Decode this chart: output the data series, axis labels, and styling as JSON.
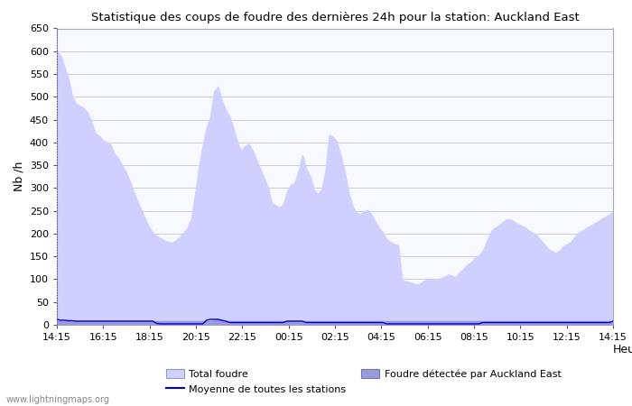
{
  "title": "Statistique des coups de foudre des dernières 24h pour la station: Auckland East",
  "ylabel": "Nb /h",
  "xlabel": "Heure",
  "watermark": "www.lightningmaps.org",
  "xlim_labels": [
    "14:15",
    "16:15",
    "18:15",
    "20:15",
    "22:15",
    "00:15",
    "02:15",
    "04:15",
    "06:15",
    "08:15",
    "10:15",
    "12:15",
    "14:15"
  ],
  "ylim": [
    0,
    650
  ],
  "yticks": [
    0,
    50,
    100,
    150,
    200,
    250,
    300,
    350,
    400,
    450,
    500,
    550,
    600,
    650
  ],
  "total_foudre_color": "#d0d0ff",
  "detected_foudre_color": "#9999dd",
  "moyenne_color": "#0000cc",
  "background_color": "#ffffff",
  "plot_bg_color": "#f8f8ff",
  "grid_color": "#ccccdd",
  "total_y": [
    600,
    590,
    565,
    540,
    500,
    485,
    480,
    475,
    465,
    445,
    420,
    415,
    405,
    400,
    395,
    375,
    365,
    350,
    335,
    315,
    292,
    272,
    252,
    232,
    215,
    202,
    195,
    190,
    185,
    182,
    180,
    185,
    192,
    202,
    212,
    232,
    285,
    345,
    392,
    432,
    456,
    512,
    522,
    492,
    472,
    457,
    432,
    402,
    382,
    392,
    397,
    382,
    362,
    342,
    322,
    302,
    267,
    262,
    257,
    264,
    292,
    307,
    312,
    337,
    372,
    342,
    327,
    297,
    287,
    297,
    337,
    417,
    412,
    402,
    372,
    337,
    292,
    262,
    247,
    242,
    248,
    252,
    242,
    227,
    212,
    202,
    187,
    182,
    177,
    174,
    98,
    95,
    93,
    90,
    88,
    92,
    98,
    100,
    98,
    100,
    102,
    105,
    110,
    108,
    105,
    115,
    122,
    132,
    137,
    147,
    152,
    162,
    182,
    202,
    212,
    217,
    224,
    230,
    232,
    227,
    222,
    218,
    214,
    207,
    202,
    197,
    187,
    177,
    167,
    162,
    157,
    162,
    172,
    177,
    182,
    192,
    202,
    207,
    212,
    217,
    222,
    227,
    232,
    237,
    242,
    247
  ],
  "detected_y": [
    8,
    8,
    8,
    8,
    8,
    8,
    8,
    8,
    8,
    8,
    8,
    8,
    8,
    8,
    8,
    8,
    8,
    8,
    8,
    8,
    8,
    8,
    8,
    8,
    8,
    8,
    8,
    8,
    8,
    8,
    8,
    8,
    8,
    8,
    8,
    8,
    8,
    8,
    8,
    8,
    8,
    10,
    12,
    10,
    8,
    8,
    8,
    8,
    8,
    8,
    8,
    8,
    8,
    8,
    8,
    8,
    8,
    8,
    8,
    8,
    8,
    8,
    8,
    8,
    8,
    8,
    8,
    8,
    8,
    8,
    8,
    8,
    8,
    8,
    8,
    8,
    8,
    8,
    8,
    8,
    8,
    8,
    8,
    8,
    8,
    8,
    8,
    8,
    8,
    8,
    8,
    8,
    8,
    8,
    8,
    8,
    8,
    8,
    8,
    8,
    8,
    8,
    8,
    8,
    8,
    8,
    8,
    8,
    8,
    8,
    8,
    8,
    8,
    8,
    8,
    8,
    8,
    8,
    8,
    8,
    8,
    8,
    8,
    8,
    8,
    8,
    8,
    8,
    8,
    8,
    8,
    8,
    8,
    8,
    8,
    8,
    8,
    8,
    8,
    8,
    8,
    8,
    8,
    8,
    8,
    8
  ],
  "moyenne_y": [
    12,
    10,
    10,
    9,
    9,
    8,
    8,
    8,
    8,
    8,
    8,
    8,
    8,
    8,
    8,
    8,
    8,
    8,
    8,
    8,
    8,
    8,
    8,
    8,
    8,
    8,
    3,
    2,
    2,
    2,
    2,
    2,
    2,
    2,
    2,
    2,
    2,
    2,
    2,
    10,
    12,
    12,
    12,
    10,
    8,
    5,
    5,
    5,
    5,
    5,
    5,
    5,
    5,
    5,
    5,
    5,
    5,
    5,
    5,
    5,
    8,
    8,
    8,
    8,
    8,
    5,
    5,
    5,
    5,
    5,
    5,
    5,
    5,
    5,
    5,
    5,
    5,
    5,
    5,
    5,
    5,
    5,
    5,
    5,
    5,
    5,
    2,
    2,
    2,
    2,
    2,
    2,
    2,
    2,
    2,
    2,
    2,
    2,
    2,
    2,
    2,
    2,
    2,
    2,
    2,
    2,
    2,
    2,
    2,
    2,
    2,
    5,
    5,
    5,
    5,
    5,
    5,
    5,
    5,
    5,
    5,
    5,
    5,
    5,
    5,
    5,
    5,
    5,
    5,
    5,
    5,
    5,
    5,
    5,
    5,
    5,
    5,
    5,
    5,
    5,
    5,
    5,
    5,
    5,
    5,
    8
  ],
  "legend_total_label": "Total foudre",
  "legend_moyenne_label": "Moyenne de toutes les stations",
  "legend_detected_label": "Foudre détectée par Auckland East"
}
